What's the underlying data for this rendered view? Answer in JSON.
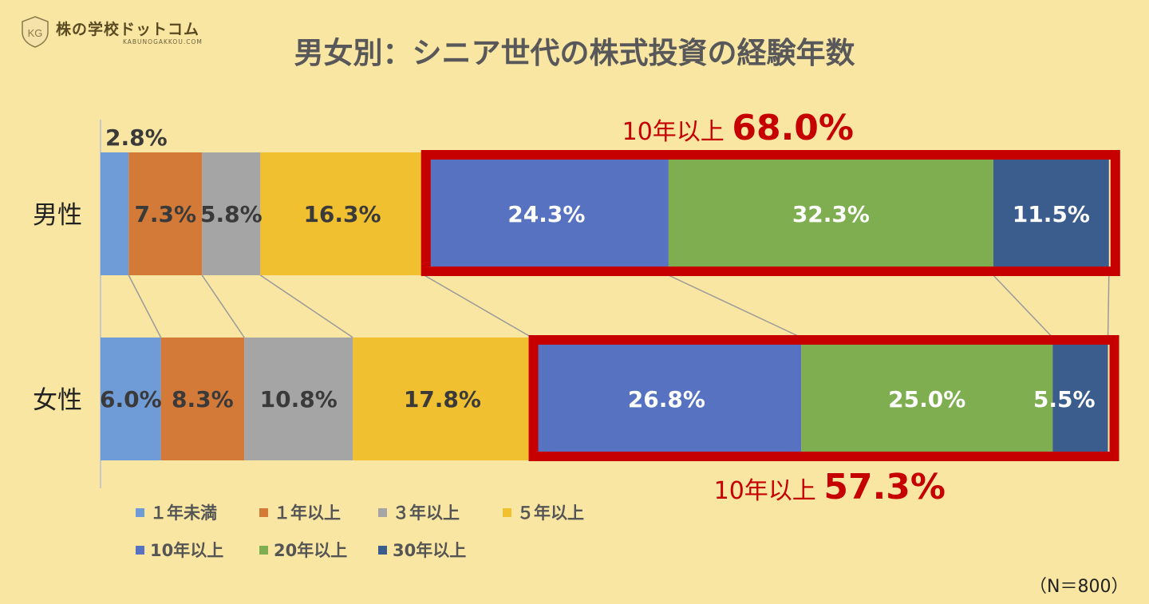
{
  "brand": {
    "name": "株の学校ドットコム",
    "url": "KABUNOGAKKOU.COM",
    "badge_text": "KG"
  },
  "title": "男女別：シニア世代の株式投資の経験年数",
  "note": "（N＝800）",
  "colors": {
    "series": [
      "#6f9bd6",
      "#d47a38",
      "#a5a5a5",
      "#f0c030",
      "#5672c0",
      "#7fae50",
      "#3b5d8e"
    ],
    "highlight": "#c60000",
    "label_dark": "#3a3a3a",
    "label_light": "#ffffff",
    "connector": "#9a9a9a"
  },
  "chart_data": {
    "type": "bar",
    "orientation": "horizontal",
    "stacked": "percent",
    "categories": [
      "男性",
      "女性"
    ],
    "series": [
      {
        "name": "１年未満",
        "values": [
          2.8,
          6.0
        ],
        "labels": [
          "2.8%",
          "6.0%"
        ]
      },
      {
        "name": "１年以上",
        "values": [
          7.3,
          8.3
        ],
        "labels": [
          "7.3%",
          "8.3%"
        ]
      },
      {
        "name": "３年以上",
        "values": [
          5.8,
          10.8
        ],
        "labels": [
          "5.8%",
          "10.8%"
        ]
      },
      {
        "name": "５年以上",
        "values": [
          16.3,
          17.8
        ],
        "labels": [
          "16.3%",
          "17.8%"
        ]
      },
      {
        "name": "10年以上",
        "values": [
          24.3,
          26.8
        ],
        "labels": [
          "24.3%",
          "26.8%"
        ]
      },
      {
        "name": "20年以上",
        "values": [
          32.3,
          25.0
        ],
        "labels": [
          "32.3%",
          "25.0%"
        ]
      },
      {
        "name": "30年以上",
        "values": [
          11.5,
          5.5
        ],
        "labels": [
          "11.5%",
          "5.5%"
        ]
      }
    ],
    "xlim": [
      0,
      100
    ],
    "legend_position": "bottom-left",
    "annotations": [
      {
        "category": "男性",
        "prefix": "10年以上",
        "value": "68.0%"
      },
      {
        "category": "女性",
        "prefix": "10年以上",
        "value": "57.3%"
      }
    ]
  }
}
